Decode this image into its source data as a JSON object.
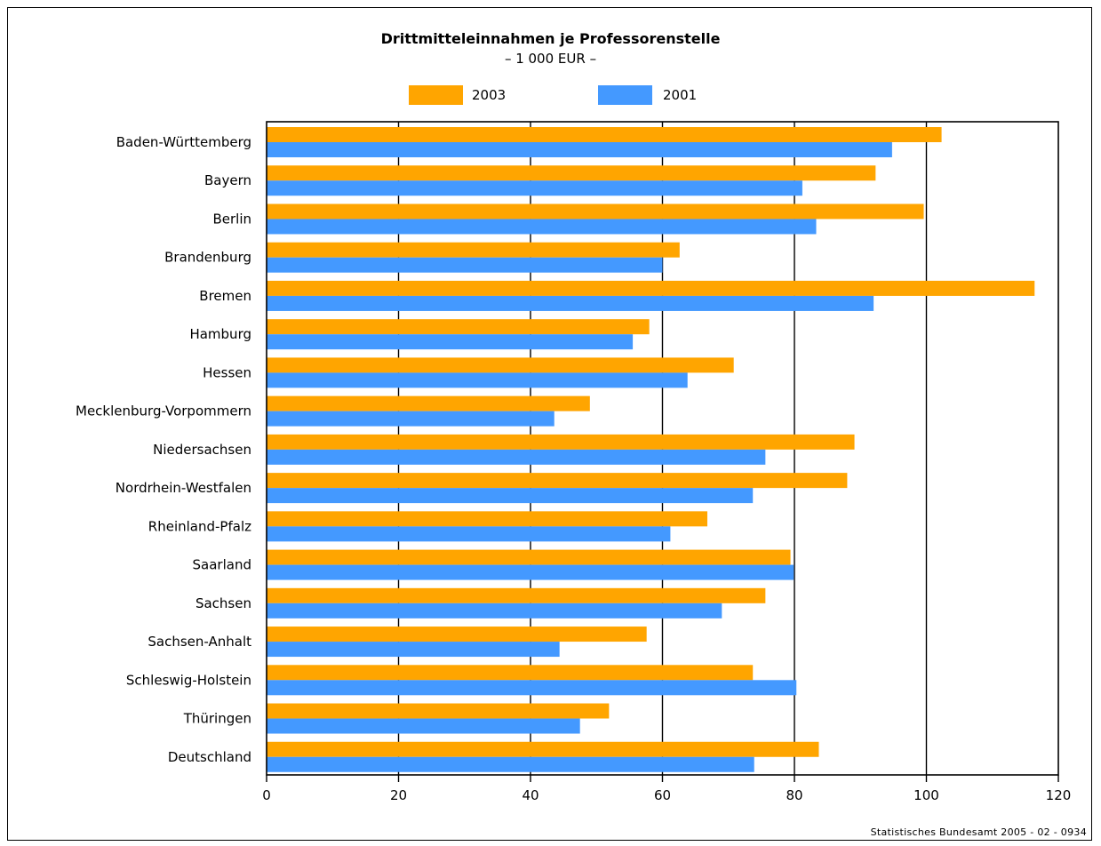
{
  "chart_data": {
    "type": "bar",
    "orientation": "horizontal",
    "title": "Drittmitteleinnahmen je Professorenstelle",
    "subtitle": "– 1 000 EUR –",
    "categories": [
      "Baden-Württemberg",
      "Bayern",
      "Berlin",
      "Brandenburg",
      "Bremen",
      "Hamburg",
      "Hessen",
      "Mecklenburg-Vorpommern",
      "Niedersachsen",
      "Nordrhein-Westfalen",
      "Rheinland-Pfalz",
      "Saarland",
      "Sachsen",
      "Sachsen-Anhalt",
      "Schleswig-Holstein",
      "Thüringen",
      "Deutschland"
    ],
    "series": [
      {
        "name": "2003",
        "color": "#FFA500",
        "values": [
          102.3,
          92.3,
          99.6,
          62.6,
          116.4,
          58.0,
          70.8,
          49.0,
          89.1,
          88.0,
          66.8,
          79.4,
          75.6,
          57.6,
          73.7,
          51.9,
          83.7
        ]
      },
      {
        "name": "2001",
        "color": "#4499FF",
        "values": [
          94.8,
          81.2,
          83.3,
          60.0,
          92.0,
          55.5,
          63.8,
          43.6,
          75.6,
          73.7,
          61.2,
          79.9,
          69.0,
          44.4,
          80.3,
          47.5,
          73.9
        ]
      }
    ],
    "xlim": [
      0,
      120
    ],
    "xticks": [
      0,
      20,
      40,
      60,
      80,
      100,
      120
    ],
    "xlabel": "",
    "ylabel": "",
    "grid": true,
    "legend_position": "top-center"
  },
  "footer": "Statistisches Bundesamt 2005 - 02 - 0934"
}
